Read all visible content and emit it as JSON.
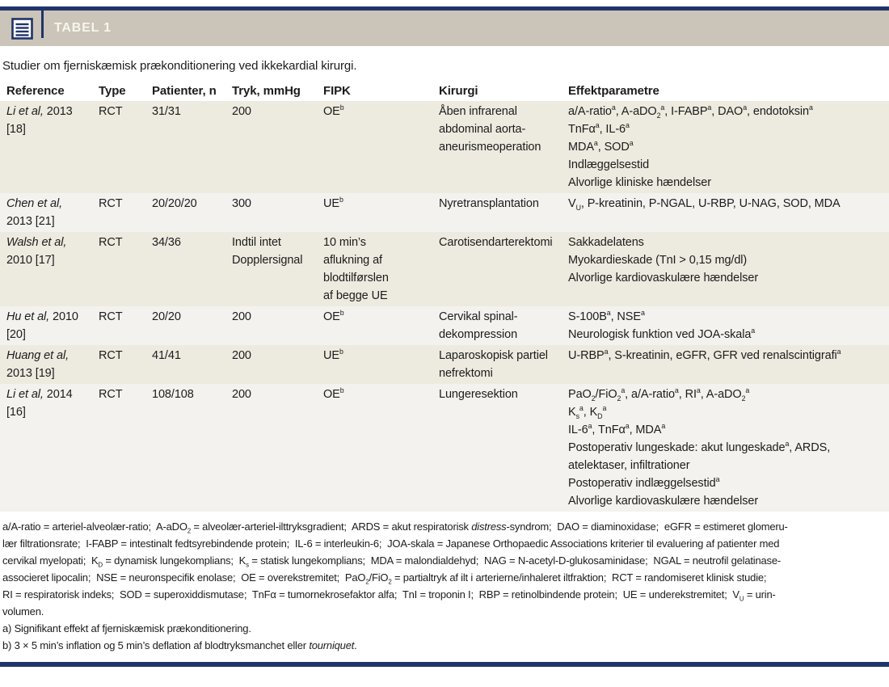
{
  "colors": {
    "navy": "#1f3469",
    "taupe": "#cbc4b8",
    "row_beige": "#edeadf",
    "row_light": "#f4f2ee",
    "tag_text": "#f7f5ef"
  },
  "header": {
    "tag_label": "TABEL 1",
    "table_icon": "list-lines-in-square"
  },
  "subtitle": "Studier om fjerniskæmisk prækonditionering ved ikkekardial kirurgi.",
  "table": {
    "columns": [
      "Reference",
      "Type",
      "Patienter, n",
      "Tryk, mmHg",
      "FIPK",
      "Kirurgi",
      "Effektparametre"
    ],
    "rows": [
      {
        "reference": [
          "<i>Li et al,</i> 2013",
          "[18]"
        ],
        "type": "RCT",
        "patients": "31/31",
        "pressure": [
          "200"
        ],
        "fipk": [
          "OE<sup>b</sup>"
        ],
        "surgery": [
          "Åben infrarenal",
          "abdominal aorta-",
          "aneurismeoperation"
        ],
        "outcomes": [
          "a/A-ratio<sup>a</sup>, A-aDO<sub>2</sub><sup>a</sup>, I-FABP<sup>a</sup>, DAO<sup>a</sup>, endotoksin<sup>a</sup>",
          "TnFα<sup>a</sup>, IL-6<sup>a</sup>",
          "MDA<sup>a</sup>, SOD<sup>a</sup>",
          "Indlæggelsestid",
          "Alvorlige kliniske hændelser"
        ]
      },
      {
        "reference": [
          "<i>Chen et al,</i>",
          "2013 [21]"
        ],
        "type": "RCT",
        "patients": "20/20/20",
        "pressure": [
          "300"
        ],
        "fipk": [
          "UE<sup>b</sup>"
        ],
        "surgery": [
          "Nyretransplantation"
        ],
        "outcomes": [
          "V<sub>U</sub>, P-kreatinin, P-NGAL, U-RBP, U-NAG, SOD, MDA"
        ]
      },
      {
        "reference": [
          "<i>Walsh et al,</i>",
          "2010 [17]"
        ],
        "type": "RCT",
        "patients": "34/36",
        "pressure": [
          "Indtil intet",
          "Dopplersignal"
        ],
        "fipk": [
          "10 min’s",
          "aflukning af",
          "blodtilførslen",
          "af begge UE"
        ],
        "surgery": [
          "Carotisendarterektomi"
        ],
        "outcomes": [
          "Sakkadelatens",
          "Myokardieskade (TnI > 0,15 mg/dl)",
          "Alvorlige kardiovaskulære hændelser"
        ]
      },
      {
        "reference": [
          "<i>Hu et al,</i> 2010",
          "[20]"
        ],
        "type": "RCT",
        "patients": "20/20",
        "pressure": [
          "200"
        ],
        "fipk": [
          "OE<sup>b</sup>"
        ],
        "surgery": [
          "Cervikal spinal-",
          "dekompression"
        ],
        "outcomes": [
          "S-100B<sup>a</sup>, NSE<sup>a</sup>",
          "Neurologisk funktion ved JOA-skala<sup>a</sup>"
        ]
      },
      {
        "reference": [
          "<i>Huang et al,</i>",
          "2013 [19]"
        ],
        "type": "RCT",
        "patients": "41/41",
        "pressure": [
          "200"
        ],
        "fipk": [
          "UE<sup>b</sup>"
        ],
        "surgery": [
          "Laparoskopisk partiel",
          "nefrektomi"
        ],
        "outcomes": [
          "U-RBP<sup>a</sup>, S-kreatinin, eGFR, GFR ved renalscintigrafi<sup>a</sup>"
        ]
      },
      {
        "reference": [
          "<i>Li et al,</i> 2014",
          "[16]"
        ],
        "type": "RCT",
        "patients": "108/108",
        "pressure": [
          "200"
        ],
        "fipk": [
          "OE<sup>b</sup>"
        ],
        "surgery": [
          "Lungeresektion"
        ],
        "outcomes": [
          "PaO<sub>2</sub>/FiO<sub>2</sub><sup>a</sup>, a/A-ratio<sup>a</sup>, RI<sup>a</sup>, A-aDO<sub>2</sub><sup>a</sup>",
          "K<sub>s</sub><sup>a</sup>, K<sub>D</sub><sup>a</sup>",
          "IL-6<sup>a</sup>, TnFα<sup>a</sup>, MDA<sup>a</sup>",
          "Postoperativ lungeskade: akut lungeskade<sup>a</sup>, ARDS,",
          "atelektaser, infiltrationer",
          "Postoperativ indlæggelsestid<sup>a</sup>",
          "Alvorlige kardiovaskulære hændelser"
        ]
      }
    ]
  },
  "footnote": {
    "lines": [
      "a/A-ratio = arteriel-alveolær-ratio;  A-aDO<sub>2</sub> = alveolær-arteriel-ilttryksgradient;  ARDS = akut respiratorisk <i>distress</i>-syndrom;  DAO = diaminoxidase;  eGFR = estimeret glomeru-",
      "lær filtrationsrate;  I-FABP = intestinalt fedtsyrebindende protein;  IL-6 = interleukin-6;  JOA-skala = Japanese Orthopaedic Associations kriterier til evaluering af patienter med",
      "cervikal myelopati;  K<sub>D</sub> = dynamisk lungekomplians;  K<sub>s</sub> = statisk lungekomplians;  MDA = malondialdehyd;  NAG = N-acetyl-D-glukosaminidase;  NGAL = neutrofil gelatinase-",
      "associeret lipocalin;  NSE = neuronspecifik enolase;  OE = overekstremitet;  PaO<sub>2</sub>/FiO<sub>2</sub> = partialtryk af ilt i arterierne/inhaleret iltfraktion;  RCT = randomiseret klinisk studie;",
      "RI = respiratorisk indeks;  SOD = superoxiddismutase;  TnFα = tumornekrosefaktor alfa;  TnI = troponin I;  RBP = retinolbindende protein;  UE = underekstremitet;  V<sub>U</sub> = urin-",
      "volumen.",
      "a) Signifikant effekt af fjerniskæmisk prækonditionering.",
      "b) 3 × 5 min’s inflation og 5 min’s deflation af blodtryksmanchet eller <i>tourniquet</i>."
    ]
  }
}
